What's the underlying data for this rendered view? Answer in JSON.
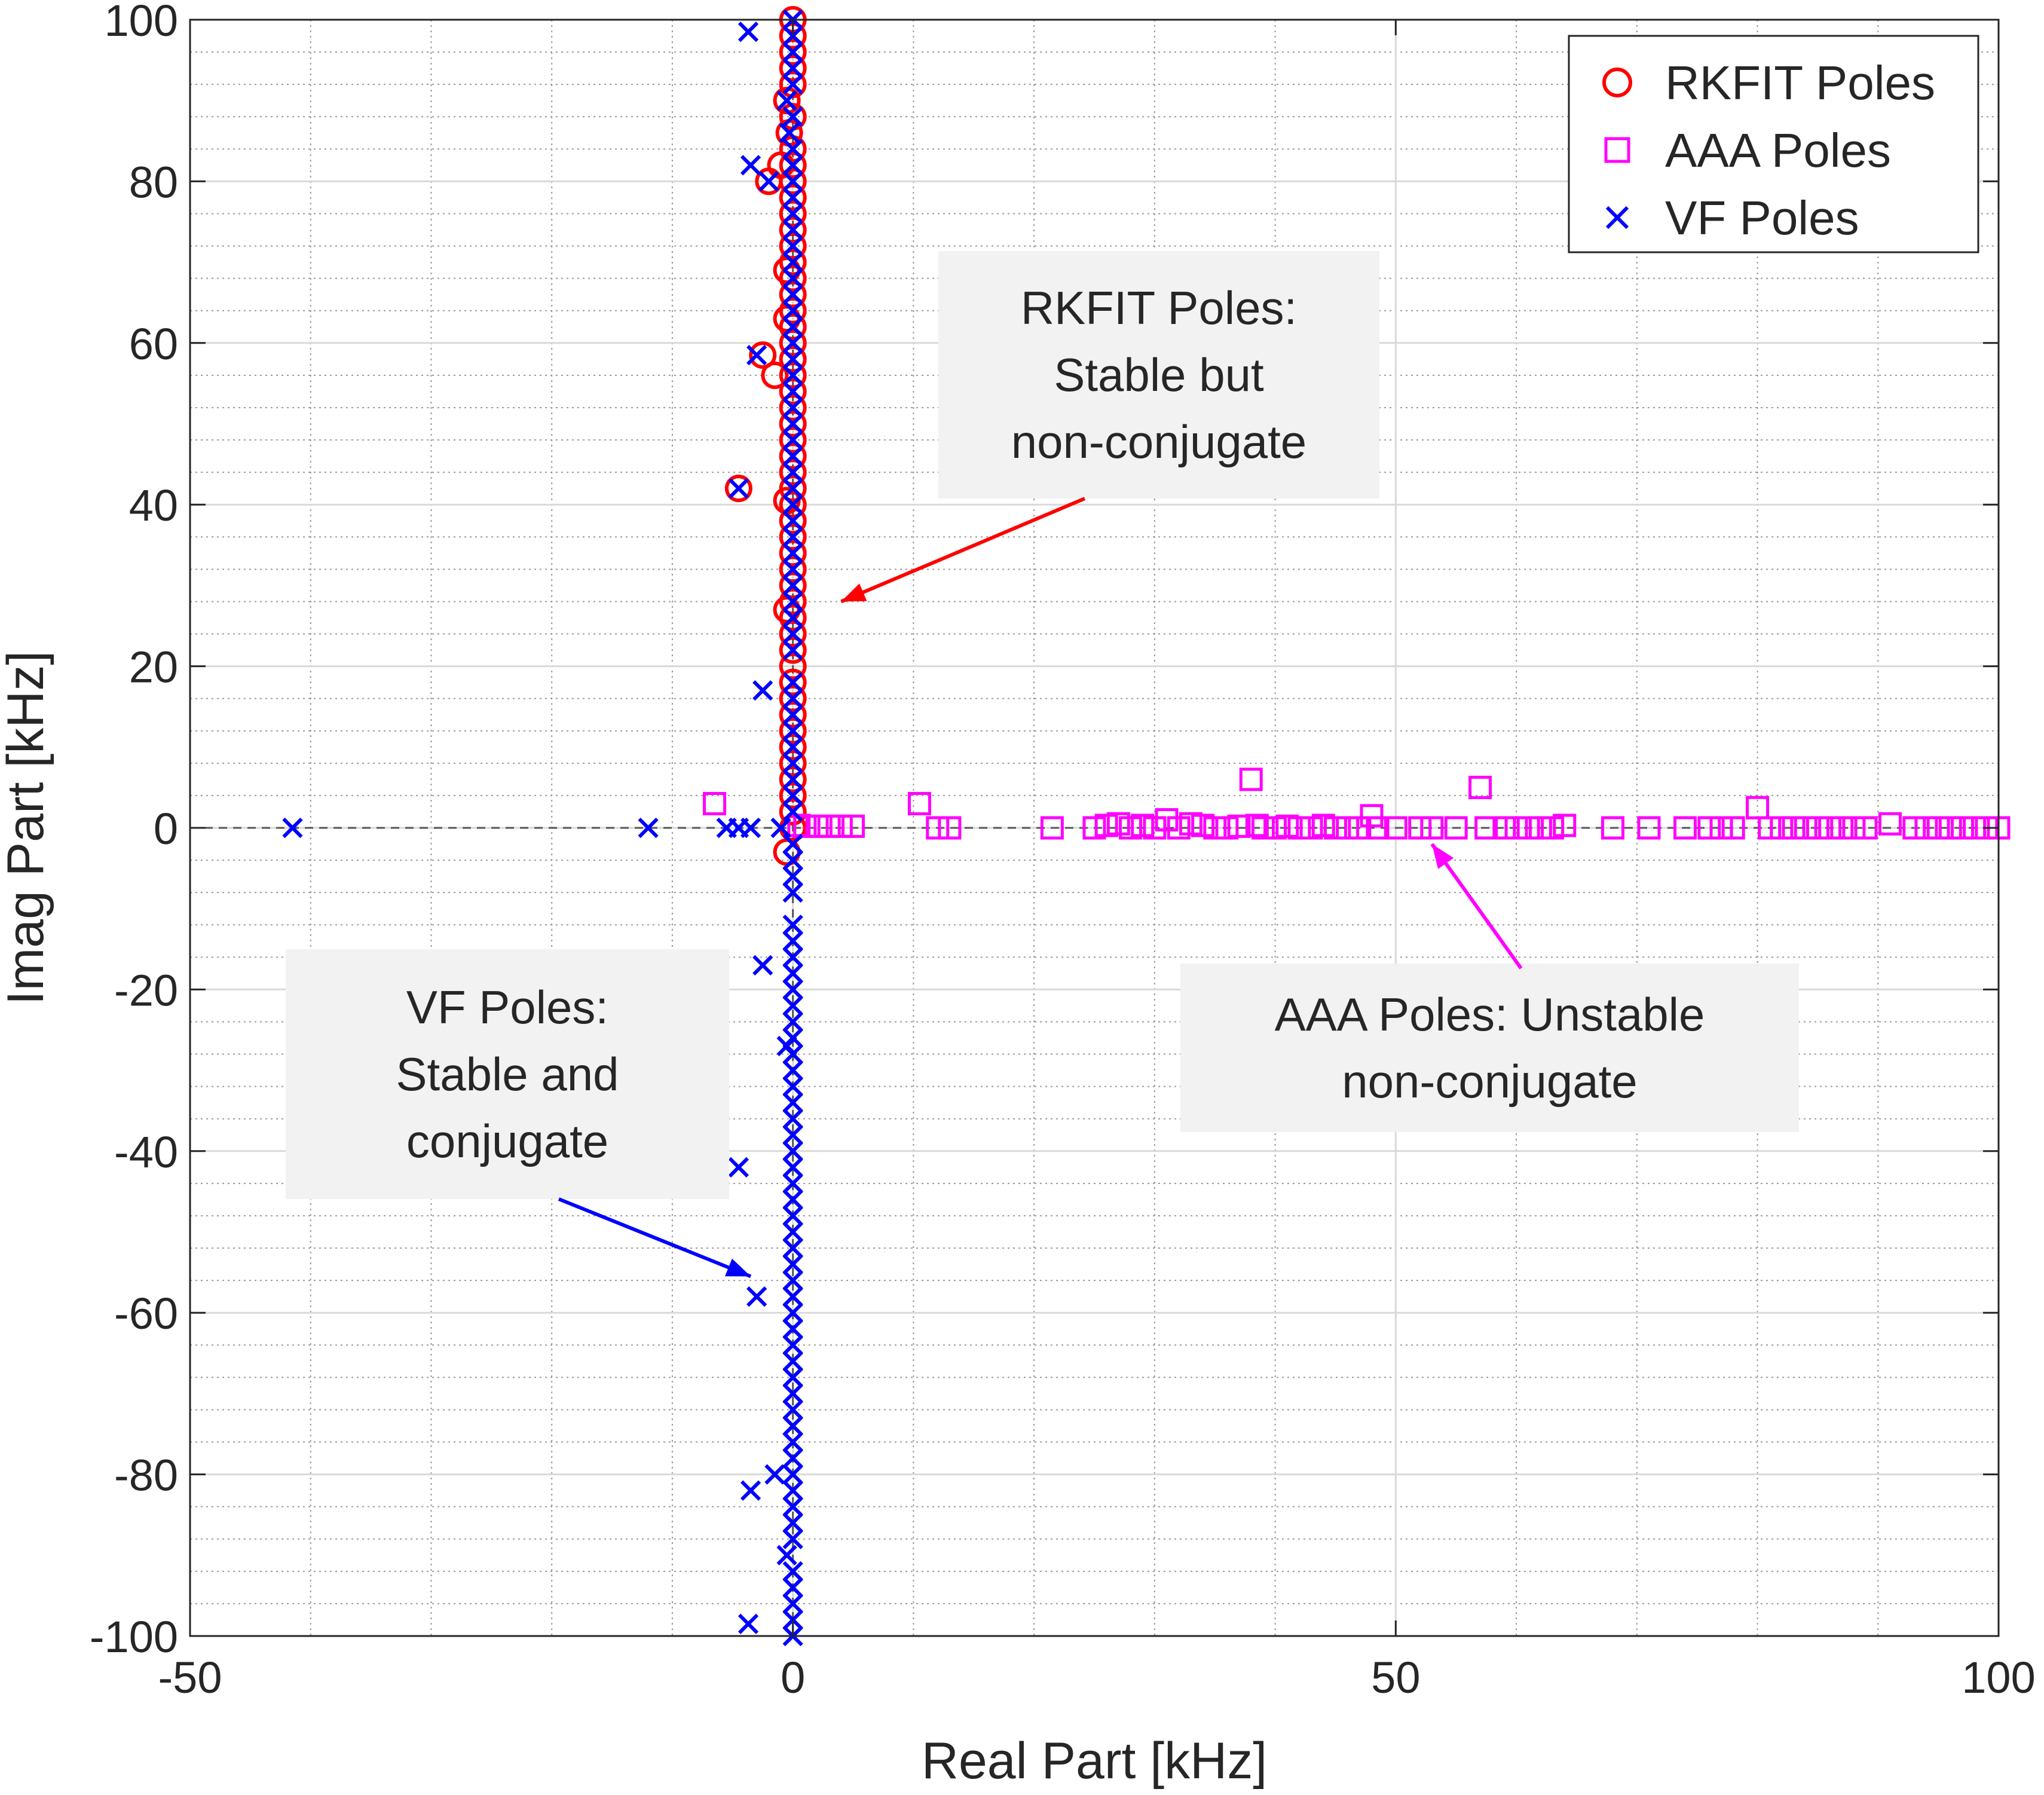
{
  "chart_data": {
    "type": "scatter",
    "title": "",
    "xlabel": "Real Part [kHz]",
    "ylabel": "Imag Part [kHz]",
    "xlim": [
      -50,
      100
    ],
    "ylim": [
      -100,
      100
    ],
    "xticks": [
      -50,
      0,
      50,
      100
    ],
    "yticks": [
      -100,
      -80,
      -60,
      -40,
      -20,
      0,
      20,
      40,
      60,
      80,
      100
    ],
    "grid": true,
    "minor_grid": true,
    "legend_position": "top-right",
    "colors": {
      "rkfit": "#ff0000",
      "aaa": "#ff00ff",
      "vf": "#0000ff",
      "arrow_rkfit": "#ff0000",
      "arrow_aaa": "#ff00ff",
      "arrow_vf": "#0000ff"
    },
    "series": [
      {
        "name": "RKFIT Poles",
        "marker": "circle",
        "color": "#ff0000",
        "points": [
          [
            0,
            100
          ],
          [
            0,
            98
          ],
          [
            0,
            96
          ],
          [
            0,
            94
          ],
          [
            0,
            92
          ],
          [
            -0.5,
            90
          ],
          [
            0,
            88
          ],
          [
            -0.3,
            86
          ],
          [
            0,
            84
          ],
          [
            -1,
            82
          ],
          [
            0,
            82
          ],
          [
            0,
            80
          ],
          [
            -2,
            80
          ],
          [
            0,
            78
          ],
          [
            0,
            76
          ],
          [
            0,
            74
          ],
          [
            0,
            72
          ],
          [
            0,
            70
          ],
          [
            -0.5,
            69
          ],
          [
            0,
            68
          ],
          [
            0,
            66
          ],
          [
            0,
            64
          ],
          [
            -0.5,
            63
          ],
          [
            0,
            62
          ],
          [
            0,
            60
          ],
          [
            -2.5,
            58.5
          ],
          [
            0,
            58
          ],
          [
            -1.5,
            56
          ],
          [
            0,
            56
          ],
          [
            0,
            54
          ],
          [
            0,
            52
          ],
          [
            0,
            50
          ],
          [
            0,
            48
          ],
          [
            0,
            46
          ],
          [
            0,
            44
          ],
          [
            -4.5,
            42
          ],
          [
            0,
            42
          ],
          [
            0,
            40
          ],
          [
            -0.5,
            40.5
          ],
          [
            0,
            38
          ],
          [
            0,
            36
          ],
          [
            0,
            34
          ],
          [
            0,
            32
          ],
          [
            0,
            30
          ],
          [
            0,
            28
          ],
          [
            -0.5,
            27
          ],
          [
            0,
            26
          ],
          [
            0,
            24
          ],
          [
            0,
            22
          ],
          [
            0,
            20
          ],
          [
            0,
            18
          ],
          [
            0,
            16
          ],
          [
            0,
            14
          ],
          [
            0,
            12
          ],
          [
            0,
            10
          ],
          [
            0,
            8
          ],
          [
            0,
            6
          ],
          [
            0,
            4
          ],
          [
            0,
            2
          ],
          [
            0,
            0
          ],
          [
            -0.5,
            -3
          ]
        ]
      },
      {
        "name": "AAA Poles",
        "marker": "square",
        "color": "#ff00ff",
        "points": [
          [
            -6.5,
            3
          ],
          [
            0.5,
            0.3
          ],
          [
            1,
            0.2
          ],
          [
            2,
            0.2
          ],
          [
            3,
            0.2
          ],
          [
            4,
            0.2
          ],
          [
            5,
            0.2
          ],
          [
            10.5,
            3
          ],
          [
            12,
            0
          ],
          [
            13,
            0
          ],
          [
            21.5,
            0
          ],
          [
            25,
            0
          ],
          [
            26,
            0.3
          ],
          [
            27,
            0.5
          ],
          [
            28,
            0
          ],
          [
            29,
            0.3
          ],
          [
            30,
            0
          ],
          [
            31,
            1
          ],
          [
            32,
            0
          ],
          [
            33,
            0.5
          ],
          [
            34,
            0.3
          ],
          [
            35,
            0
          ],
          [
            36,
            0
          ],
          [
            37,
            0.2
          ],
          [
            38,
            6
          ],
          [
            38.5,
            0.3
          ],
          [
            39,
            0
          ],
          [
            40,
            0
          ],
          [
            41,
            0.2
          ],
          [
            42,
            0
          ],
          [
            43,
            0
          ],
          [
            44,
            0.3
          ],
          [
            45,
            0
          ],
          [
            46,
            0
          ],
          [
            47,
            0
          ],
          [
            48,
            1.5
          ],
          [
            48.5,
            0
          ],
          [
            50,
            0
          ],
          [
            52,
            0
          ],
          [
            53,
            0
          ],
          [
            55,
            0
          ],
          [
            57,
            5
          ],
          [
            57.5,
            0
          ],
          [
            59,
            0
          ],
          [
            60,
            0
          ],
          [
            61,
            0
          ],
          [
            62,
            0
          ],
          [
            63,
            0
          ],
          [
            64,
            0.3
          ],
          [
            68,
            0
          ],
          [
            71,
            0
          ],
          [
            74,
            0
          ],
          [
            76,
            0
          ],
          [
            77,
            0
          ],
          [
            78,
            0
          ],
          [
            80,
            2.5
          ],
          [
            81,
            0
          ],
          [
            82,
            0
          ],
          [
            83,
            0
          ],
          [
            84,
            0
          ],
          [
            85,
            0
          ],
          [
            86,
            0
          ],
          [
            87,
            0
          ],
          [
            88,
            0
          ],
          [
            89,
            0
          ],
          [
            91,
            0.5
          ],
          [
            93,
            0
          ],
          [
            94,
            0
          ],
          [
            95,
            0
          ],
          [
            96,
            0
          ],
          [
            97,
            0
          ],
          [
            98,
            0
          ],
          [
            99,
            0
          ],
          [
            100,
            0
          ]
        ]
      },
      {
        "name": "VF Poles",
        "marker": "x",
        "color": "#0000ff",
        "points": [
          [
            -3.7,
            98.5
          ],
          [
            0,
            100
          ],
          [
            0,
            98
          ],
          [
            0,
            96
          ],
          [
            0,
            94
          ],
          [
            0,
            92
          ],
          [
            -0.5,
            90
          ],
          [
            0,
            88
          ],
          [
            -0.3,
            86
          ],
          [
            0,
            84
          ],
          [
            -3.5,
            82
          ],
          [
            0,
            82
          ],
          [
            0,
            80
          ],
          [
            -2,
            80
          ],
          [
            0,
            78
          ],
          [
            0,
            76
          ],
          [
            0,
            74
          ],
          [
            0,
            72
          ],
          [
            0,
            70
          ],
          [
            0,
            68
          ],
          [
            0,
            66
          ],
          [
            0,
            64
          ],
          [
            0,
            62
          ],
          [
            0,
            60
          ],
          [
            -3,
            58.5
          ],
          [
            0,
            58
          ],
          [
            0,
            56
          ],
          [
            0,
            54
          ],
          [
            0,
            52
          ],
          [
            0,
            50
          ],
          [
            0,
            48
          ],
          [
            0,
            46
          ],
          [
            0,
            44
          ],
          [
            -4.5,
            42
          ],
          [
            0,
            42
          ],
          [
            0,
            40
          ],
          [
            0,
            38
          ],
          [
            0,
            36
          ],
          [
            0,
            34
          ],
          [
            0,
            32
          ],
          [
            0,
            30
          ],
          [
            0,
            28
          ],
          [
            0,
            26
          ],
          [
            0,
            24
          ],
          [
            0,
            22
          ],
          [
            -2.5,
            17
          ],
          [
            0,
            18
          ],
          [
            0,
            16
          ],
          [
            0,
            14
          ],
          [
            0,
            12
          ],
          [
            0,
            10
          ],
          [
            0,
            8
          ],
          [
            0,
            6
          ],
          [
            0,
            4
          ],
          [
            0,
            2
          ],
          [
            -41.5,
            0
          ],
          [
            -12,
            0
          ],
          [
            -5.5,
            0
          ],
          [
            -4.5,
            0
          ],
          [
            -3.5,
            0
          ],
          [
            -1,
            0
          ],
          [
            0,
            -2
          ],
          [
            0,
            -4
          ],
          [
            0,
            -6
          ],
          [
            0,
            -8
          ],
          [
            0,
            -12
          ],
          [
            0,
            -14
          ],
          [
            0,
            -16
          ],
          [
            -2.5,
            -17
          ],
          [
            0,
            -18
          ],
          [
            0,
            -20
          ],
          [
            0,
            -22
          ],
          [
            0,
            -24
          ],
          [
            0,
            -26
          ],
          [
            -0.5,
            -27
          ],
          [
            0,
            -28
          ],
          [
            0,
            -30
          ],
          [
            0,
            -32
          ],
          [
            0,
            -34
          ],
          [
            0,
            -36
          ],
          [
            0,
            -38
          ],
          [
            0,
            -40
          ],
          [
            -4.5,
            -42
          ],
          [
            0,
            -42
          ],
          [
            0,
            -44
          ],
          [
            0,
            -46
          ],
          [
            0,
            -48
          ],
          [
            0,
            -50
          ],
          [
            0,
            -52
          ],
          [
            0,
            -54
          ],
          [
            0,
            -56
          ],
          [
            -3,
            -58
          ],
          [
            0,
            -58
          ],
          [
            0,
            -60
          ],
          [
            0,
            -62
          ],
          [
            0,
            -64
          ],
          [
            0,
            -66
          ],
          [
            0,
            -68
          ],
          [
            0,
            -70
          ],
          [
            0,
            -72
          ],
          [
            0,
            -74
          ],
          [
            0,
            -76
          ],
          [
            0,
            -78
          ],
          [
            -1.5,
            -80
          ],
          [
            0,
            -80
          ],
          [
            -3.5,
            -82
          ],
          [
            0,
            -82
          ],
          [
            0,
            -84
          ],
          [
            0,
            -86
          ],
          [
            0,
            -88
          ],
          [
            -0.5,
            -90
          ],
          [
            0,
            -92
          ],
          [
            0,
            -94
          ],
          [
            0,
            -96
          ],
          [
            -3.7,
            -98.5
          ],
          [
            0,
            -98
          ],
          [
            0,
            -100
          ]
        ]
      }
    ],
    "annotations": [
      {
        "id": "rkfit",
        "lines": [
          "RKFIT Poles:",
          "Stable but",
          "non-conjugate"
        ],
        "arrow_to": [
          4,
          28
        ],
        "color": "#ff0000"
      },
      {
        "id": "aaa",
        "lines": [
          "AAA Poles: Unstable",
          "non-conjugate"
        ],
        "arrow_to": [
          53,
          -2
        ],
        "color": "#ff00ff"
      },
      {
        "id": "vf",
        "lines": [
          "VF Poles:",
          "Stable and",
          "conjugate"
        ],
        "arrow_to": [
          -3.5,
          -55.5
        ],
        "color": "#0000ff"
      }
    ]
  }
}
